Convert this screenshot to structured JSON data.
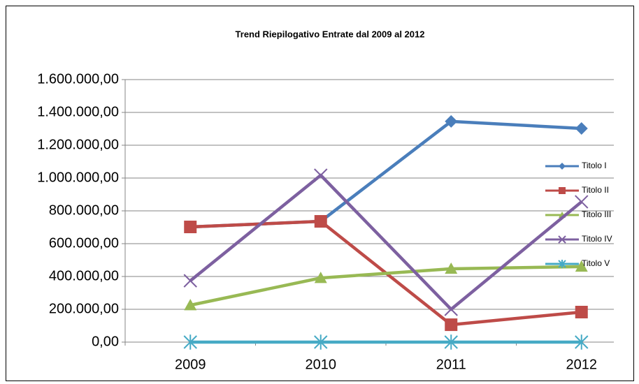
{
  "chart_data": {
    "type": "line",
    "title": "Trend Riepilogativo Entrate dal 2009 al 2012",
    "categories": [
      "2009",
      "2010",
      "2011",
      "2012"
    ],
    "series": [
      {
        "name": "Titolo I",
        "color": "#4a7ebb",
        "marker": "diamond",
        "values": [
          702000,
          736000,
          1345000,
          1302000
        ]
      },
      {
        "name": "Titolo II",
        "color": "#be4b48",
        "marker": "square",
        "values": [
          702000,
          736000,
          106000,
          183000
        ]
      },
      {
        "name": "Titolo III",
        "color": "#98b954",
        "marker": "triangle",
        "values": [
          225000,
          391000,
          447000,
          460000
        ]
      },
      {
        "name": "Titolo IV",
        "color": "#7d60a0",
        "marker": "x",
        "values": [
          374000,
          1017000,
          200000,
          855000
        ]
      },
      {
        "name": "Titolo V",
        "color": "#46aac5",
        "marker": "star",
        "values": [
          0,
          0,
          0,
          0
        ]
      }
    ],
    "ylim": [
      0,
      1600000
    ],
    "yticks": [
      {
        "value": 0,
        "label": "0,00"
      },
      {
        "value": 200000,
        "label": "200.000,00"
      },
      {
        "value": 400000,
        "label": "400.000,00"
      },
      {
        "value": 600000,
        "label": "600.000,00"
      },
      {
        "value": 800000,
        "label": "800.000,00"
      },
      {
        "value": 1000000,
        "label": "1.000.000,00"
      },
      {
        "value": 1200000,
        "label": "1.200.000,00"
      },
      {
        "value": 1400000,
        "label": "1.400.000,00"
      },
      {
        "value": 1600000,
        "label": "1.600.000,00"
      }
    ],
    "grid": true,
    "legend": "right"
  }
}
